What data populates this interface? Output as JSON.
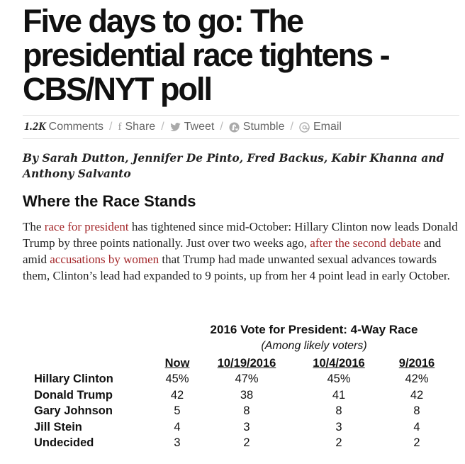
{
  "headline": "Five days to go: The presidential race tightens - CBS/NYT poll",
  "social": {
    "comment_count": "1.2K",
    "comments_label": "Comments",
    "share_label": "Share",
    "tweet_label": "Tweet",
    "stumble_label": "Stumble",
    "email_label": "Email",
    "separator": "/"
  },
  "byline": "By Sarah Dutton, Jennifer De Pinto, Fred Backus, Kabir Khanna and Anthony Salvanto",
  "section_heading": "Where the Race Stands",
  "body": {
    "t1": "The ",
    "link1": "race for president",
    "t2": " has tightened since mid-October: Hillary Clinton now leads Donald Trump by three points nationally.  Just over two weeks ago, ",
    "link2": "after the second debate",
    "t3": " and amid ",
    "link3": "accusations by women",
    "t4": " that Trump had made unwanted sexual advances towards them, Clinton’s lead had expanded to 9 points, up from her 4 point lead in early October."
  },
  "poll": {
    "title": "2016 Vote for President: 4-Way Race",
    "subtitle": "(Among likely voters)",
    "columns": [
      "Now",
      "10/19/2016",
      "10/4/2016",
      "9/2016"
    ],
    "rows": [
      {
        "name": "Hillary Clinton",
        "values": [
          "45%",
          "47%",
          "45%",
          "42%"
        ]
      },
      {
        "name": "Donald Trump",
        "values": [
          "42",
          "38",
          "41",
          "42"
        ]
      },
      {
        "name": "Gary Johnson",
        "values": [
          "5",
          "8",
          "8",
          "8"
        ]
      },
      {
        "name": "Jill Stein",
        "values": [
          "4",
          "3",
          "3",
          "4"
        ]
      },
      {
        "name": "Undecided",
        "values": [
          "3",
          "2",
          "2",
          "2"
        ]
      }
    ]
  },
  "icons": {
    "share": "facebook-icon",
    "tweet": "twitter-icon",
    "stumble": "stumbleupon-icon",
    "email": "email-at-icon"
  },
  "colors": {
    "link": "#a4282b",
    "text": "#222222",
    "muted": "#666666"
  }
}
